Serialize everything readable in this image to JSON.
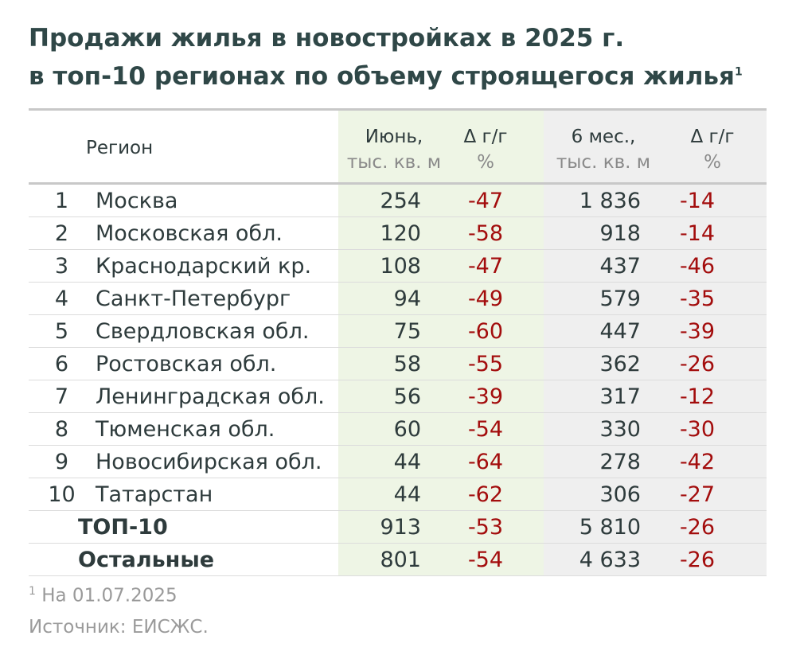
{
  "title": {
    "line1": "Продажи жилья в новостройках в 2025 г.",
    "line2": "в топ-10 регионах по объему строящегося жилья",
    "footnote_mark": "1"
  },
  "table": {
    "header": {
      "region": "Регион",
      "june": [
        "Июнь,",
        "тыс. кв. м"
      ],
      "june_yoy": [
        "Δ г/г",
        "%"
      ],
      "six_months": [
        "6 мес.,",
        "тыс. кв. м"
      ],
      "six_yoy": [
        "Δ г/г",
        "%"
      ]
    },
    "rows": [
      [
        "1",
        "Москва",
        "254",
        "-47",
        "1 836",
        "-14"
      ],
      [
        "2",
        "Московская обл.",
        "120",
        "-58",
        "918",
        "-14"
      ],
      [
        "3",
        "Краснодарский кр.",
        "108",
        "-47",
        "437",
        "-46"
      ],
      [
        "4",
        "Санкт-Петербург",
        "94",
        "-49",
        "579",
        "-35"
      ],
      [
        "5",
        "Свердловская обл.",
        "75",
        "-60",
        "447",
        "-39"
      ],
      [
        "6",
        "Ростовская обл.",
        "58",
        "-55",
        "362",
        "-26"
      ],
      [
        "7",
        "Ленинградская обл.",
        "56",
        "-39",
        "317",
        "-12"
      ],
      [
        "8",
        "Тюменская обл.",
        "60",
        "-54",
        "330",
        "-30"
      ],
      [
        "9",
        "Новосибирская обл.",
        "44",
        "-64",
        "278",
        "-42"
      ],
      [
        "10",
        "Татарстан",
        "44",
        "-62",
        "306",
        "-27"
      ]
    ],
    "totals": [
      [
        "ТОП-10",
        "913",
        "-53",
        "5 810",
        "-26"
      ],
      [
        "Остальные",
        "801",
        "-54",
        "4 633",
        "-26"
      ]
    ]
  },
  "footnote": {
    "mark": "1",
    "text": "На 01.07.2025"
  },
  "source": "Источник: ЕИСЖС."
}
